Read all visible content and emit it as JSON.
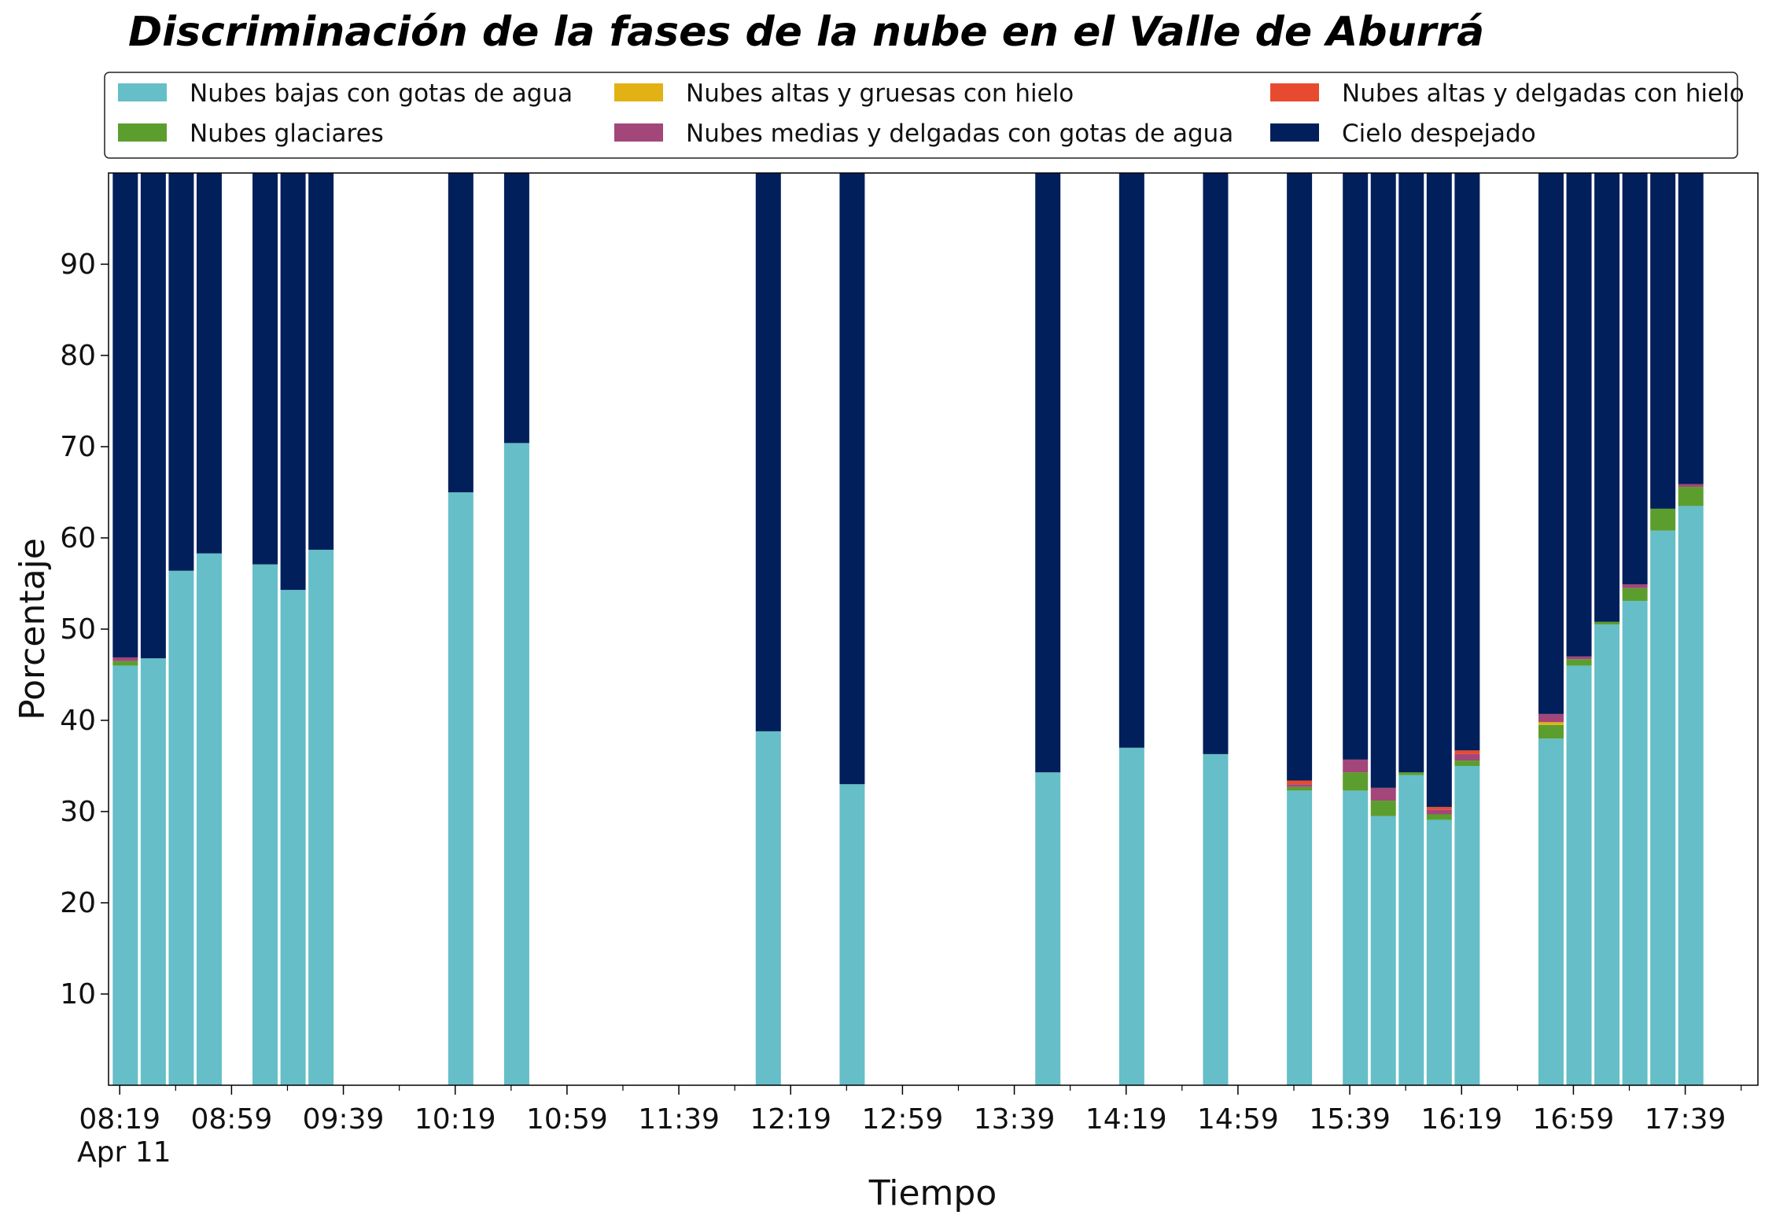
{
  "chart_data": {
    "type": "bar",
    "stacked": true,
    "title": "Discriminación de la fases de la nube en el Valle de Aburrá",
    "xlabel": "Tiempo",
    "ylabel": "Porcentaje",
    "ylim": [
      0,
      100
    ],
    "yticks": [
      10,
      20,
      30,
      40,
      50,
      60,
      70,
      80,
      90
    ],
    "x_minutes_range": [
      495,
      1085
    ],
    "xticks": [
      {
        "label": "08:19",
        "minute": 499
      },
      {
        "label": "08:59",
        "minute": 539
      },
      {
        "label": "09:39",
        "minute": 579
      },
      {
        "label": "10:19",
        "minute": 619
      },
      {
        "label": "10:59",
        "minute": 659
      },
      {
        "label": "11:39",
        "minute": 699
      },
      {
        "label": "12:19",
        "minute": 739
      },
      {
        "label": "12:59",
        "minute": 779
      },
      {
        "label": "13:39",
        "minute": 819
      },
      {
        "label": "14:19",
        "minute": 859
      },
      {
        "label": "14:59",
        "minute": 899
      },
      {
        "label": "15:39",
        "minute": 939
      },
      {
        "label": "16:19",
        "minute": 979
      },
      {
        "label": "16:59",
        "minute": 1019
      },
      {
        "label": "17:39",
        "minute": 1059
      }
    ],
    "date_label": "Apr 11",
    "legend_position": "top, outside plot, 3 columns",
    "x": [
      501,
      511,
      521,
      531,
      551,
      561,
      571,
      621,
      641,
      731,
      761,
      831,
      861,
      891,
      921,
      941,
      951,
      961,
      971,
      981,
      1011,
      1021,
      1031,
      1041,
      1051,
      1061
    ],
    "series": [
      {
        "name": "Nubes bajas con gotas de agua",
        "color": "#65bec8",
        "values": [
          46.0,
          46.8,
          56.4,
          58.3,
          57.1,
          54.3,
          58.7,
          65.0,
          70.4,
          38.8,
          33.0,
          34.3,
          37.0,
          36.3,
          32.3,
          32.3,
          29.5,
          34.0,
          29.1,
          35.0,
          38.0,
          46.0,
          50.5,
          53.1,
          60.8,
          63.5
        ]
      },
      {
        "name": "Nubes glaciares",
        "color": "#5b9e2d",
        "values": [
          0.5,
          0,
          0,
          0,
          0,
          0,
          0,
          0,
          0,
          0,
          0,
          0,
          0,
          0,
          0.4,
          2.0,
          1.7,
          0.3,
          0.6,
          0.6,
          1.5,
          0.7,
          0.3,
          1.4,
          2.4,
          2.1
        ]
      },
      {
        "name": "Nubes altas y gruesas con hielo",
        "color": "#e2b214",
        "values": [
          0,
          0,
          0,
          0,
          0,
          0,
          0,
          0,
          0,
          0,
          0,
          0,
          0,
          0,
          0,
          0,
          0,
          0,
          0,
          0,
          0.3,
          0,
          0,
          0,
          0,
          0
        ]
      },
      {
        "name": "Nubes medias y delgadas con gotas de agua",
        "color": "#a3467a",
        "values": [
          0.4,
          0,
          0,
          0,
          0,
          0,
          0,
          0,
          0,
          0,
          0,
          0,
          0,
          0,
          0.3,
          1.4,
          1.4,
          0,
          0.5,
          0.7,
          0.9,
          0.3,
          0,
          0.4,
          0,
          0.3
        ]
      },
      {
        "name": "Nubes altas y delgadas con hielo",
        "color": "#e84a2f",
        "values": [
          0,
          0,
          0,
          0,
          0,
          0,
          0,
          0,
          0,
          0,
          0,
          0,
          0,
          0,
          0.4,
          0,
          0,
          0,
          0.3,
          0.4,
          0,
          0,
          0,
          0,
          0,
          0
        ]
      },
      {
        "name": "Cielo despejado",
        "color": "#011f5b",
        "values": [
          53.1,
          53.2,
          43.6,
          41.7,
          42.9,
          45.7,
          41.3,
          35.0,
          29.6,
          61.2,
          67.0,
          65.7,
          63.0,
          63.7,
          66.6,
          64.3,
          67.4,
          65.7,
          69.5,
          63.3,
          59.3,
          53.0,
          49.2,
          45.1,
          36.8,
          34.1
        ]
      }
    ]
  }
}
